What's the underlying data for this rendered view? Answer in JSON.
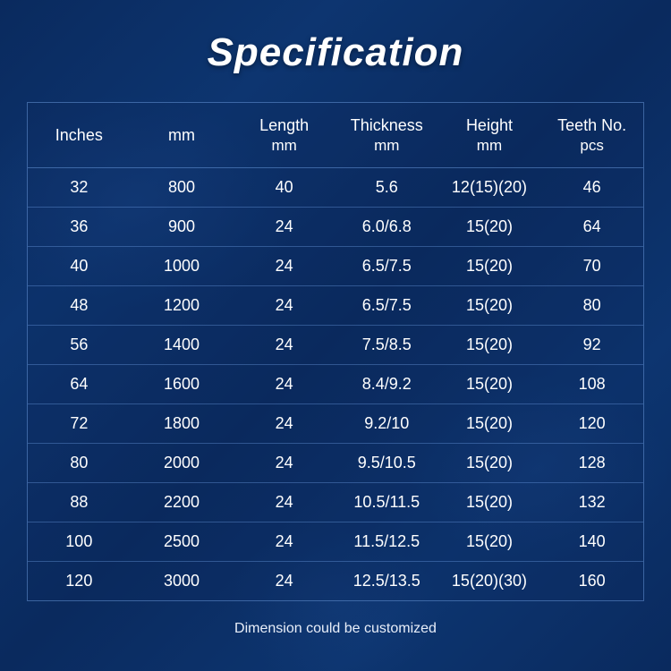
{
  "title": "Specification",
  "footnote": "Dimension could be customized",
  "styling": {
    "background_gradient": [
      "#0a2a5e",
      "#0d3570",
      "#0a2a5e"
    ],
    "text_color": "#ffffff",
    "border_color": "rgba(120,170,240,0.45)",
    "row_divider_color": "rgba(120,170,240,0.35)",
    "title_fontsize": 44,
    "title_weight": 700,
    "title_style": "italic",
    "header_fontsize": 18,
    "cell_fontsize": 18,
    "footnote_fontsize": 16,
    "table_type": "table",
    "column_count": 6,
    "column_align": [
      "center",
      "center",
      "center",
      "center",
      "center",
      "center"
    ]
  },
  "columns": [
    {
      "main": "Inches",
      "sub": ""
    },
    {
      "main": "mm",
      "sub": ""
    },
    {
      "main": "Length",
      "sub": "mm"
    },
    {
      "main": "Thickness",
      "sub": "mm"
    },
    {
      "main": "Height",
      "sub": "mm"
    },
    {
      "main": "Teeth No.",
      "sub": "pcs"
    }
  ],
  "rows": [
    [
      "32",
      "800",
      "40",
      "5.6",
      "12(15)(20)",
      "46"
    ],
    [
      "36",
      "900",
      "24",
      "6.0/6.8",
      "15(20)",
      "64"
    ],
    [
      "40",
      "1000",
      "24",
      "6.5/7.5",
      "15(20)",
      "70"
    ],
    [
      "48",
      "1200",
      "24",
      "6.5/7.5",
      "15(20)",
      "80"
    ],
    [
      "56",
      "1400",
      "24",
      "7.5/8.5",
      "15(20)",
      "92"
    ],
    [
      "64",
      "1600",
      "24",
      "8.4/9.2",
      "15(20)",
      "108"
    ],
    [
      "72",
      "1800",
      "24",
      "9.2/10",
      "15(20)",
      "120"
    ],
    [
      "80",
      "2000",
      "24",
      "9.5/10.5",
      "15(20)",
      "128"
    ],
    [
      "88",
      "2200",
      "24",
      "10.5/11.5",
      "15(20)",
      "132"
    ],
    [
      "100",
      "2500",
      "24",
      "11.5/12.5",
      "15(20)",
      "140"
    ],
    [
      "120",
      "3000",
      "24",
      "12.5/13.5",
      "15(20)(30)",
      "160"
    ]
  ]
}
